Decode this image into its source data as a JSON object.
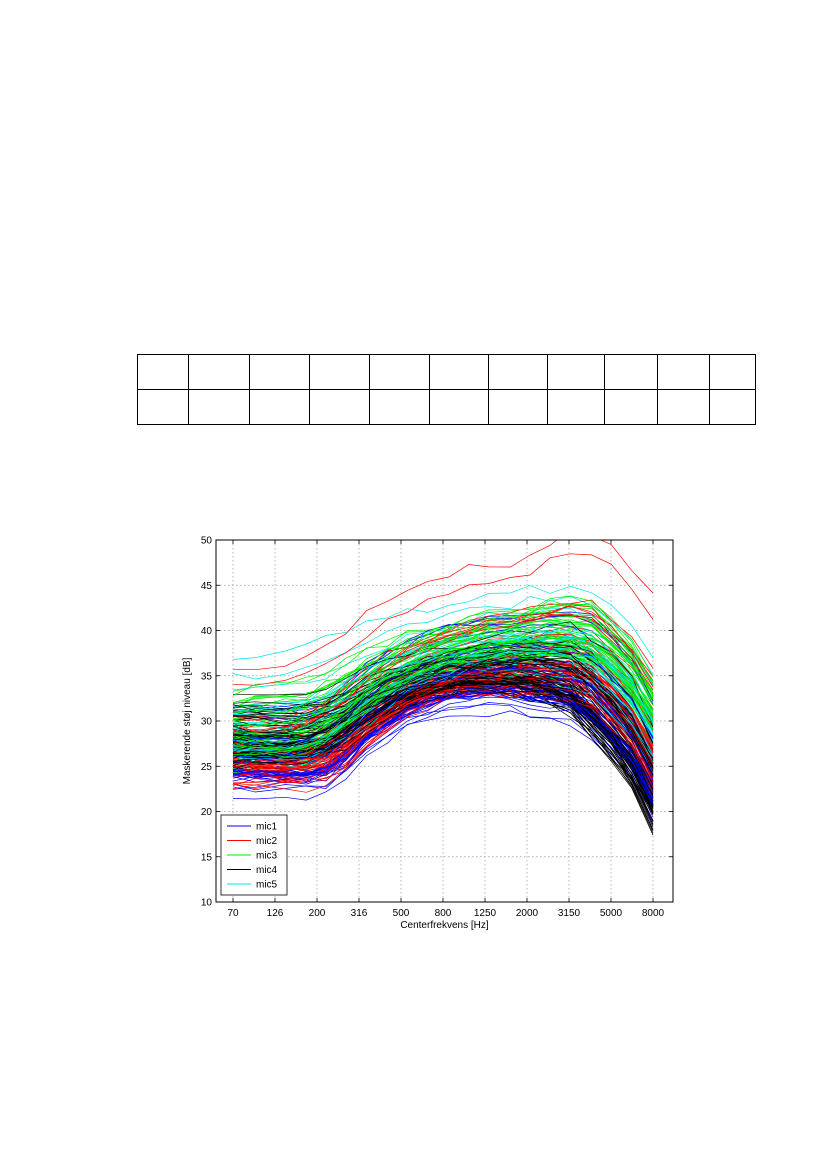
{
  "table": {
    "rows": 2,
    "cols": 11
  },
  "chart_data": {
    "type": "line",
    "title": "",
    "xlabel": "Centerfrekvens [Hz]",
    "ylabel": "Maskerende støj niveau [dB]",
    "x_ticks": [
      "70",
      "126",
      "200",
      "316",
      "500",
      "800",
      "1250",
      "2000",
      "3150",
      "5000",
      "8000"
    ],
    "x_scale": "log",
    "x_points_hz": [
      70,
      90,
      126,
      160,
      200,
      250,
      316,
      400,
      500,
      630,
      800,
      1000,
      1250,
      1600,
      2000,
      2500,
      3150,
      4000,
      5000,
      6300,
      8000
    ],
    "ylim": [
      10,
      50
    ],
    "y_ticks": [
      10,
      15,
      20,
      25,
      30,
      35,
      40,
      45,
      50
    ],
    "grid": true,
    "legend_position": "bottom-left",
    "colors": {
      "mic1": "#0000ff",
      "mic2": "#ff0000",
      "mic3": "#00ee00",
      "mic4": "#000000",
      "mic5": "#00e5e5"
    },
    "series": [
      {
        "name": "mic1",
        "color": "#0000ff",
        "curve_count": 45,
        "median_db": [
          25.5,
          25,
          25,
          25,
          25.5,
          27,
          29,
          30.5,
          32,
          33,
          33.8,
          34.2,
          34.5,
          34.5,
          34.3,
          34,
          33.5,
          32,
          29.5,
          27,
          23
        ],
        "min_envelope_db": [
          20.5,
          21,
          21,
          20.5,
          21,
          22.5,
          25.5,
          27,
          28.5,
          29,
          29.5,
          29.8,
          29.8,
          29.5,
          28.5,
          28.5,
          28.5,
          26.5,
          25,
          22,
          17
        ],
        "max_envelope_db": [
          34,
          34,
          34,
          34.5,
          35.5,
          37,
          39.5,
          41,
          42,
          43,
          43.5,
          44,
          44.5,
          44.5,
          45,
          45.5,
          46,
          45.5,
          44.5,
          42,
          36
        ]
      },
      {
        "name": "mic2",
        "color": "#ff0000",
        "curve_count": 55,
        "median_db": [
          26,
          25.5,
          25.5,
          25.8,
          26.5,
          28,
          30,
          31.5,
          33,
          34,
          34.8,
          35.3,
          35.8,
          36,
          36.2,
          36.3,
          36.2,
          35.5,
          33.5,
          31,
          27
        ],
        "min_envelope_db": [
          21.5,
          22,
          22,
          21.5,
          22,
          23.5,
          26,
          28,
          29.5,
          30.5,
          31,
          31.5,
          31.5,
          31.2,
          31,
          30.5,
          30,
          29,
          27,
          25,
          20
        ],
        "max_envelope_db": [
          35.5,
          36,
          36.5,
          37.5,
          38.5,
          40,
          42,
          43.5,
          44.5,
          45.5,
          46.5,
          47.5,
          48,
          48,
          49,
          50.5,
          51.5,
          51.5,
          50,
          48,
          45
        ]
      },
      {
        "name": "mic3",
        "color": "#00ee00",
        "curve_count": 50,
        "median_db": [
          28,
          28,
          28,
          28.5,
          29.5,
          31,
          33,
          34.5,
          35.8,
          36.8,
          37.5,
          38,
          38.5,
          38.8,
          39,
          39.2,
          39,
          38.5,
          37,
          34.5,
          31
        ],
        "min_envelope_db": [
          23,
          23.5,
          24,
          24,
          25,
          26.5,
          28.5,
          30,
          31.5,
          32.5,
          33,
          33.5,
          33.5,
          33.5,
          33.3,
          33,
          33,
          32.5,
          31,
          29,
          25
        ],
        "max_envelope_db": [
          37.5,
          39,
          39.5,
          40,
          41,
          41.5,
          42,
          42.5,
          43,
          43.5,
          44,
          44.5,
          45,
          45.5,
          46.5,
          47.5,
          47.8,
          47.5,
          45.5,
          43,
          38
        ]
      },
      {
        "name": "mic4",
        "color": "#000000",
        "curve_count": 85,
        "median_db": [
          27,
          27,
          27,
          27.2,
          27.8,
          29,
          30.8,
          32.2,
          33.3,
          34,
          34.5,
          34.8,
          35,
          35,
          34.8,
          34.3,
          33.5,
          31.5,
          29,
          26,
          21.5
        ],
        "min_envelope_db": [
          23.5,
          24.5,
          24.5,
          24.5,
          25,
          26,
          28,
          29.5,
          30.5,
          31.5,
          32,
          32.2,
          32.2,
          32,
          31.5,
          30.5,
          29.5,
          27,
          24.5,
          21,
          16
        ],
        "max_envelope_db": [
          36,
          36,
          35.5,
          35.5,
          36,
          36.5,
          37.5,
          38.5,
          39,
          39.5,
          40,
          40.5,
          41,
          41.5,
          42,
          42.5,
          43,
          42,
          40,
          37.5,
          32
        ]
      },
      {
        "name": "mic5",
        "color": "#00e5e5",
        "curve_count": 40,
        "median_db": [
          27,
          27,
          27,
          27.5,
          28.3,
          29.8,
          31.8,
          33.3,
          34.5,
          35.5,
          36.2,
          36.7,
          37,
          37.3,
          37.5,
          37.5,
          37.3,
          36.5,
          34.5,
          32,
          28
        ],
        "min_envelope_db": [
          22.5,
          23,
          23,
          23,
          24,
          25.5,
          27.5,
          29,
          30.5,
          31.5,
          32,
          32.5,
          32.5,
          32.5,
          32.3,
          32,
          31.5,
          30.5,
          28.5,
          26,
          22
        ],
        "max_envelope_db": [
          38,
          38,
          38.5,
          39,
          40,
          41,
          41.5,
          42,
          42.5,
          43,
          43.5,
          44,
          44.5,
          44.5,
          45,
          45,
          45,
          44.5,
          43,
          41,
          37
        ]
      }
    ]
  }
}
